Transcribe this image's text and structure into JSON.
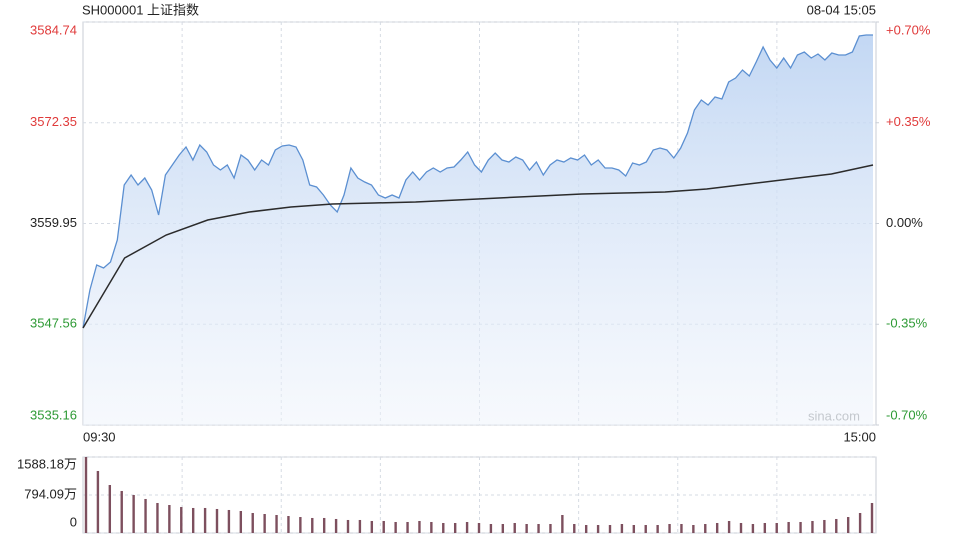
{
  "chart_data": [
    {
      "type": "line",
      "title": "SH000001 上证指数",
      "subtitle": "08-04 15:05",
      "annotation": "sina.com",
      "xtick_labels": [
        "09:30",
        "15:00"
      ],
      "ylim": [
        3535.16,
        3584.74
      ],
      "yticks": [
        3584.74,
        3572.35,
        3559.95,
        3547.56,
        3535.16
      ],
      "y2lim": [
        -0.7,
        0.7
      ],
      "y2ticks": [
        {
          "value": 0.7,
          "label": "+0.70%"
        },
        {
          "value": 0.35,
          "label": "+0.35%"
        },
        {
          "value": 0,
          "label": "0.00%"
        },
        {
          "value": -0.35,
          "label": "-0.35%"
        },
        {
          "value": -0.7,
          "label": "-0.70%"
        }
      ],
      "grid": true,
      "up_color": "#e03a3a",
      "down_color": "#2e9a35",
      "flat_color": "#222222",
      "series": [
        {
          "color": "#5b8fd1",
          "fill": true,
          "values": [
            3547.09,
            3551.77,
            3554.84,
            3554.48,
            3555.21,
            3557.92,
            3564.69,
            3565.92,
            3564.69,
            3565.55,
            3564.07,
            3561.0,
            3565.92,
            3567.15,
            3568.38,
            3569.36,
            3567.76,
            3569.61,
            3568.75,
            3567.15,
            3566.53,
            3567.15,
            3565.55,
            3568.38,
            3567.76,
            3566.53,
            3567.76,
            3567.15,
            3568.99,
            3569.49,
            3569.61,
            3569.36,
            3567.76,
            3564.69,
            3564.44,
            3563.46,
            3562.23,
            3561.37,
            3563.46,
            3566.78,
            3565.55,
            3565.06,
            3564.69,
            3563.46,
            3563.09,
            3563.46,
            3563.09,
            3565.3,
            3566.29,
            3565.3,
            3566.29,
            3566.78,
            3566.29,
            3566.78,
            3566.9,
            3567.76,
            3568.75,
            3567.15,
            3566.29,
            3567.76,
            3568.62,
            3567.76,
            3567.52,
            3568.13,
            3567.76,
            3566.53,
            3567.52,
            3565.92,
            3567.15,
            3567.76,
            3567.52,
            3568.01,
            3567.76,
            3568.38,
            3567.15,
            3567.76,
            3566.78,
            3566.78,
            3566.53,
            3565.79,
            3567.39,
            3567.15,
            3567.52,
            3568.99,
            3569.24,
            3568.99,
            3568.01,
            3569.24,
            3571.08,
            3573.91,
            3575.14,
            3574.53,
            3575.51,
            3575.27,
            3577.36,
            3577.85,
            3578.84,
            3578.1,
            3579.82,
            3581.67,
            3580.07,
            3579.08,
            3580.31,
            3579.08,
            3580.68,
            3581.05,
            3580.31,
            3580.8,
            3580.07,
            3580.93,
            3580.68,
            3580.68,
            3581.05,
            3583.02,
            3583.14,
            3583.14
          ]
        },
        {
          "color": "#2b2b2b",
          "fill": false,
          "values": [
            3547.09,
            3555.71,
            3558.54,
            3560.38,
            3561.37,
            3561.98,
            3562.35,
            3562.47,
            3562.6,
            3562.84,
            3563.09,
            3563.33,
            3563.58,
            3563.7,
            3563.83,
            3564.2,
            3564.81,
            3565.43,
            3566.04,
            3567.15
          ]
        }
      ]
    },
    {
      "type": "bar",
      "ylim": [
        0,
        1588.18
      ],
      "yticks": [
        {
          "value": 1588.18,
          "label": "1588.18万"
        },
        {
          "value": 794.09,
          "label": "794.09万"
        },
        0
      ],
      "grid": true,
      "color": "#7d4f5e",
      "values": [
        1588,
        1296,
        1003,
        878,
        794,
        711,
        627,
        585,
        543,
        523,
        523,
        502,
        481,
        460,
        418,
        397,
        376,
        355,
        334,
        314,
        314,
        293,
        272,
        272,
        251,
        251,
        230,
        230,
        251,
        230,
        209,
        209,
        230,
        209,
        188,
        188,
        209,
        188,
        188,
        188,
        376,
        188,
        167,
        167,
        167,
        188,
        167,
        167,
        167,
        188,
        188,
        167,
        188,
        209,
        251,
        209,
        188,
        209,
        209,
        230,
        230,
        251,
        272,
        293,
        334,
        418,
        627
      ]
    }
  ]
}
